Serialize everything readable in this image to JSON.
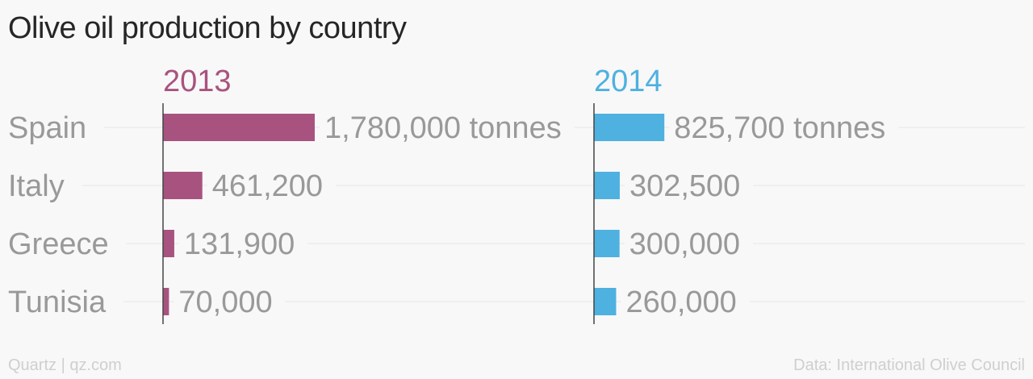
{
  "title": "Olive oil production by country",
  "footer": {
    "source_brand": "Quartz | qz.com",
    "data_source": "Data: International Olive Council"
  },
  "colors": {
    "series_2013": "#a8537f",
    "series_2014": "#4eb1e0",
    "label_gray": "#999999",
    "gridline": "#e6e6e6"
  },
  "chart_data": {
    "type": "bar",
    "orientation": "horizontal",
    "categories": [
      "Spain",
      "Italy",
      "Greece",
      "Tunisia"
    ],
    "series": [
      {
        "name": "2013",
        "values": [
          1780000,
          461200,
          131900,
          70000
        ],
        "labels": [
          "1,780,000 tonnes",
          "461,200",
          "131,900",
          "70,000"
        ]
      },
      {
        "name": "2014",
        "values": [
          825700,
          302500,
          300000,
          260000
        ],
        "labels": [
          "825,700 tonnes",
          "302,500",
          "300,000",
          "260,000"
        ]
      }
    ],
    "xlim": [
      0,
      3550000
    ],
    "unit": "tonnes",
    "grid": true,
    "legend": "none"
  }
}
